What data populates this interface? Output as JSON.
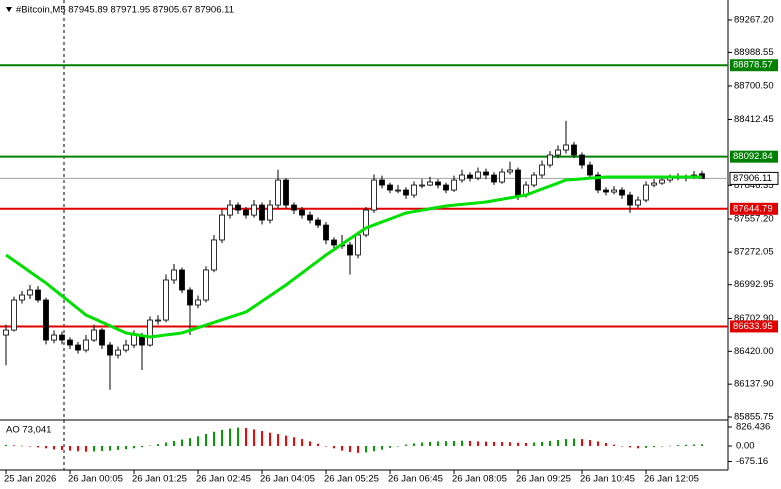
{
  "chart_data": {
    "type": "candlestick",
    "title": "#Bitcoin,M5  87945.89 87971.95 87905.67 87906.11",
    "categories": [
      "25 Jan 2026",
      null,
      null,
      null,
      null,
      null,
      null,
      null,
      "26 Jan 00:05",
      null,
      null,
      null,
      null,
      null,
      null,
      null,
      "26 Jan 01:25",
      null,
      null,
      null,
      null,
      null,
      null,
      null,
      "26 Jan 02:45",
      null,
      null,
      null,
      null,
      null,
      null,
      null,
      "26 Jan 04:05",
      null,
      null,
      null,
      null,
      null,
      null,
      null,
      "26 Jan 05:25",
      null,
      null,
      null,
      null,
      null,
      null,
      null,
      "26 Jan 06:45",
      null,
      null,
      null,
      null,
      null,
      null,
      null,
      "26 Jan 08:05",
      null,
      null,
      null,
      null,
      null,
      null,
      null,
      "26 Jan 09:25",
      null,
      null,
      null,
      null,
      null,
      null,
      null,
      "26 Jan 10:45",
      null,
      null,
      null,
      null,
      null,
      null,
      null,
      "26 Jan 12:05",
      null,
      null,
      null,
      null,
      null,
      null,
      null
    ],
    "candles": [
      [
        86560,
        86650,
        86300,
        86603
      ],
      [
        86603,
        86890,
        86590,
        86861
      ],
      [
        86861,
        86940,
        86830,
        86904
      ],
      [
        86904,
        86990,
        86870,
        86947
      ],
      [
        86947,
        86980,
        86840,
        86861
      ],
      [
        86861,
        86880,
        86480,
        86517
      ],
      [
        86517,
        86600,
        86490,
        86560
      ],
      [
        86560,
        86590,
        86480,
        86517
      ],
      [
        86517,
        86540,
        86440,
        86474
      ],
      [
        86474,
        86500,
        86400,
        86431
      ],
      [
        86431,
        86560,
        86410,
        86517
      ],
      [
        86517,
        86650,
        86500,
        86603
      ],
      [
        86603,
        86620,
        86440,
        86474
      ],
      [
        86474,
        86500,
        86090,
        86388
      ],
      [
        86388,
        86460,
        86360,
        86431
      ],
      [
        86431,
        86520,
        86410,
        86474
      ],
      [
        86474,
        86600,
        86450,
        86560
      ],
      [
        86560,
        86580,
        86260,
        86474
      ],
      [
        86474,
        86720,
        86460,
        86689
      ],
      [
        86689,
        86730,
        86650,
        86689
      ],
      [
        86689,
        87080,
        86670,
        87033
      ],
      [
        87033,
        87170,
        87000,
        87119
      ],
      [
        87119,
        87140,
        86920,
        86947
      ],
      [
        86947,
        86970,
        86560,
        86818
      ],
      [
        86818,
        86900,
        86790,
        86861
      ],
      [
        86861,
        87150,
        86840,
        87119
      ],
      [
        87119,
        87420,
        87100,
        87377
      ],
      [
        87377,
        87640,
        87350,
        87591
      ],
      [
        87591,
        87720,
        87560,
        87677
      ],
      [
        87677,
        87700,
        87600,
        87634
      ],
      [
        87634,
        87660,
        87560,
        87591
      ],
      [
        87591,
        87720,
        87570,
        87677
      ],
      [
        87677,
        87700,
        87510,
        87548
      ],
      [
        87548,
        87720,
        87520,
        87677
      ],
      [
        87677,
        87980,
        87650,
        87892
      ],
      [
        87892,
        87910,
        87650,
        87677
      ],
      [
        87677,
        87700,
        87600,
        87634
      ],
      [
        87634,
        87660,
        87560,
        87591
      ],
      [
        87591,
        87620,
        87520,
        87548
      ],
      [
        87548,
        87570,
        87480,
        87505
      ],
      [
        87505,
        87530,
        87340,
        87377
      ],
      [
        87377,
        87400,
        87300,
        87334
      ],
      [
        87334,
        87420,
        87300,
        87334
      ],
      [
        87334,
        87360,
        87080,
        87248
      ],
      [
        87248,
        87450,
        87220,
        87420
      ],
      [
        87420,
        87660,
        87400,
        87634
      ],
      [
        87634,
        87940,
        87610,
        87892
      ],
      [
        87892,
        87930,
        87820,
        87849
      ],
      [
        87849,
        87870,
        87780,
        87806
      ],
      [
        87806,
        87850,
        87780,
        87806
      ],
      [
        87806,
        87830,
        87730,
        87763
      ],
      [
        87763,
        87880,
        87740,
        87849
      ],
      [
        87849,
        87900,
        87820,
        87849
      ],
      [
        87849,
        87920,
        87840,
        87875
      ],
      [
        87875,
        87900,
        87820,
        87849
      ],
      [
        87849,
        87870,
        87780,
        87806
      ],
      [
        87806,
        87930,
        87790,
        87892
      ],
      [
        87892,
        87980,
        87870,
        87935
      ],
      [
        87935,
        87960,
        87880,
        87909
      ],
      [
        87909,
        88000,
        87890,
        87961
      ],
      [
        87961,
        87990,
        87900,
        87935
      ],
      [
        87935,
        87960,
        87850,
        87875
      ],
      [
        87875,
        87990,
        87860,
        87961
      ],
      [
        87961,
        88050,
        87940,
        87978
      ],
      [
        87978,
        88000,
        87720,
        87763
      ],
      [
        87763,
        87880,
        87740,
        87849
      ],
      [
        87849,
        87960,
        87830,
        87935
      ],
      [
        87935,
        88060,
        87910,
        88021
      ],
      [
        88021,
        88140,
        88000,
        88107
      ],
      [
        88107,
        88190,
        88080,
        88150
      ],
      [
        88150,
        88400,
        88120,
        88193
      ],
      [
        88193,
        88220,
        88080,
        88107
      ],
      [
        88107,
        88130,
        87990,
        88021
      ],
      [
        88021,
        88050,
        87900,
        87935
      ],
      [
        87935,
        87960,
        87780,
        87806
      ],
      [
        87806,
        87830,
        87760,
        87789
      ],
      [
        87789,
        87840,
        87770,
        87806
      ],
      [
        87806,
        87830,
        87730,
        87763
      ],
      [
        87763,
        87790,
        87610,
        87677
      ],
      [
        87677,
        87750,
        87650,
        87720
      ],
      [
        87720,
        87880,
        87700,
        87849
      ],
      [
        87849,
        87900,
        87830,
        87866
      ],
      [
        87866,
        87920,
        87850,
        87892
      ],
      [
        87892,
        87940,
        87870,
        87909
      ],
      [
        87909,
        87950,
        87890,
        87918
      ],
      [
        87918,
        87940,
        87880,
        87909
      ],
      [
        87909,
        87970,
        87900,
        87935
      ],
      [
        87945.89,
        87971.95,
        87905.67,
        87906.11
      ]
    ],
    "up_color": "#ffffff",
    "down_color": "#000000",
    "ma": {
      "color": "#00e000",
      "values": [
        87248,
        87200,
        87152,
        87103,
        87055,
        87007,
        86952,
        86897,
        86842,
        86787,
        86732,
        86701,
        86670,
        86640,
        86609,
        86578,
        86566,
        86555,
        86543,
        86552,
        86561,
        86569,
        86578,
        86601,
        86623,
        86646,
        86668,
        86691,
        86713,
        86736,
        86758,
        86804,
        86851,
        86897,
        86944,
        86990,
        87042,
        87093,
        87145,
        87196,
        87248,
        87294,
        87341,
        87387,
        87434,
        87480,
        87506,
        87532,
        87557,
        87583,
        87609,
        87621,
        87633,
        87645,
        87657,
        87669,
        87676,
        87683,
        87689,
        87696,
        87703,
        87715,
        87727,
        87739,
        87751,
        87763,
        87789,
        87815,
        87840,
        87866,
        87892,
        87897,
        87902,
        87908,
        87913,
        87918,
        87918,
        87918,
        87918,
        87918,
        87918,
        87918,
        87918,
        87918,
        87918,
        87918,
        87918,
        87918
      ]
    },
    "levels": [
      {
        "value": 88878.57,
        "color": "#008000"
      },
      {
        "value": 88092.84,
        "color": "#008000"
      },
      {
        "value": 87644.79,
        "color": "#e00000"
      },
      {
        "value": 86633.95,
        "color": "#e00000"
      }
    ],
    "current_price": {
      "value": 87906.11,
      "color": "#a0a0a0"
    },
    "ylim": [
      85830,
      89439
    ],
    "yticks": [
      {
        "value": 89267.2,
        "label": "89267.20"
      },
      88988.55,
      {
        "value": 88700.5,
        "label": "88700.50"
      },
      88412.45,
      87846.35,
      {
        "value": 87557.2,
        "label": "87557.20"
      },
      {
        "value": 87272.05,
        "label": "87272.05"
      },
      86992.95,
      {
        "value": 86702.9,
        "label": "86702.90"
      },
      {
        "value": 86420,
        "label": "86420.00"
      },
      {
        "value": 86137.9,
        "label": "86137.90"
      },
      85855.75
    ],
    "indicator": {
      "name": "AO 73,041",
      "up_color": "#00a000",
      "down_color": "#ff0000",
      "values": [
        50,
        30,
        10,
        -20,
        -60,
        -100,
        -150,
        -180,
        -200,
        -230,
        -250,
        -240,
        -220,
        -200,
        -170,
        -140,
        -100,
        -50,
        20,
        80,
        150,
        220,
        280,
        340,
        420,
        520,
        620,
        700,
        760,
        800,
        780,
        720,
        650,
        580,
        520,
        450,
        380,
        300,
        200,
        100,
        0,
        -100,
        -200,
        -260,
        -300,
        -280,
        -230,
        -160,
        -80,
        0,
        60,
        110,
        150,
        180,
        200,
        210,
        220,
        230,
        220,
        200,
        190,
        180,
        170,
        160,
        140,
        130,
        150,
        180,
        220,
        260,
        300,
        320,
        300,
        260,
        200,
        130,
        60,
        0,
        -60,
        -100,
        -80,
        -50,
        -20,
        10,
        40,
        55,
        65,
        73.041
      ],
      "ylim": [
        -957,
        1043
      ],
      "yticks": [
        826.436,
        {
          "value": 0,
          "label": "0.00"
        },
        -675.16
      ]
    }
  }
}
